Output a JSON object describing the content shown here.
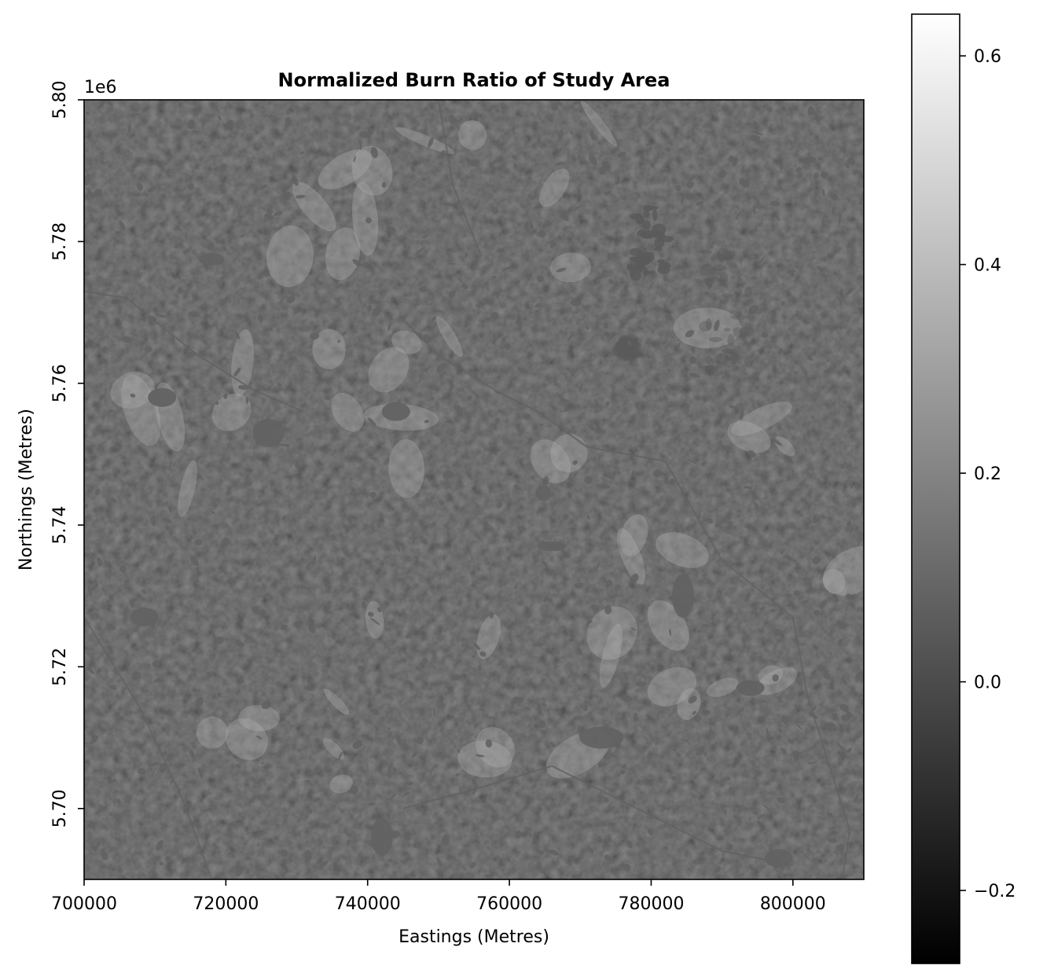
{
  "chart_data": {
    "type": "heatmap",
    "title": "Normalized Burn Ratio of Study Area",
    "xlabel": "Eastings (Metres)",
    "ylabel": "Northings (Metres)",
    "y_offset_label": "1e6",
    "xlim": [
      700000,
      810000
    ],
    "ylim": [
      5.69,
      5.8
    ],
    "x_ticks": [
      700000,
      720000,
      740000,
      760000,
      780000,
      800000
    ],
    "x_tick_labels": [
      "700000",
      "720000",
      "740000",
      "760000",
      "780000",
      "800000"
    ],
    "y_ticks": [
      5.7,
      5.72,
      5.74,
      5.76,
      5.78,
      5.8
    ],
    "y_tick_labels": [
      "5.70",
      "5.72",
      "5.74",
      "5.76",
      "5.78",
      "5.80"
    ],
    "colormap": "gray",
    "colorbar": {
      "vmin": -0.27,
      "vmax": 0.64,
      "ticks": [
        -0.2,
        0.0,
        0.2,
        0.4,
        0.6
      ],
      "tick_labels": [
        "−0.2",
        "0.0",
        "0.2",
        "0.4",
        "0.6"
      ]
    },
    "typical_value": 0.25,
    "water_value": 0.08,
    "burn_scar_value": 0.05,
    "grid": false
  }
}
